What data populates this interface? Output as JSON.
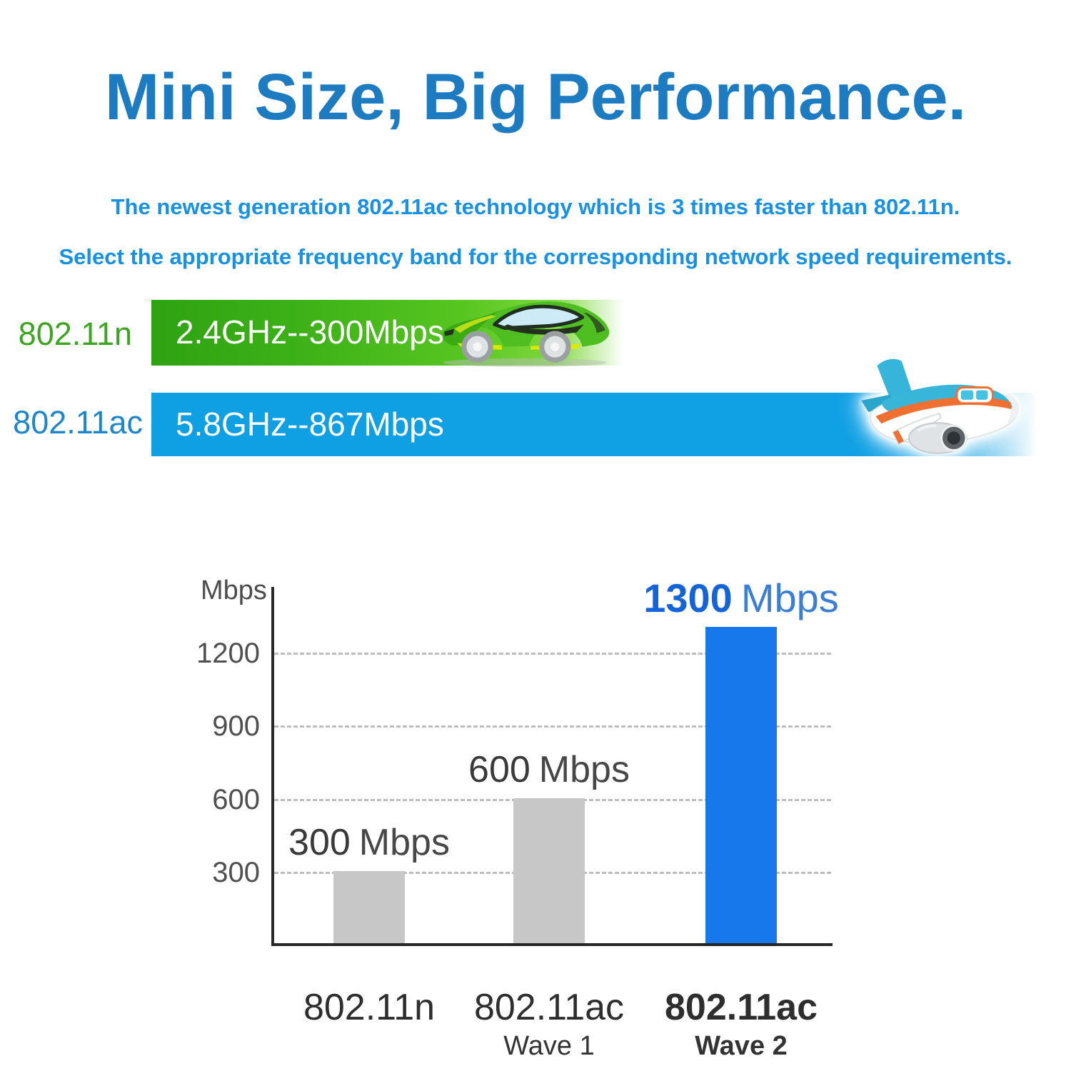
{
  "title": "Mini Size, Big Performance.",
  "subtitles": {
    "line1": "The newest generation 802.11ac technology which is 3 times faster than 802.11n.",
    "line2": "Select the appropriate frequency band for the corresponding network speed requirements."
  },
  "bands": [
    {
      "label": "802.11n",
      "text": "2.4GHz--300Mbps",
      "color": "#3fb318",
      "icon": "sports-car"
    },
    {
      "label": "802.11ac",
      "text": "5.8GHz--867Mbps",
      "color": "#10a0e4",
      "icon": "airplane"
    }
  ],
  "chart": {
    "ylabel": "Mbps",
    "yticks": [
      "1200",
      "900",
      "600",
      "300"
    ],
    "bars": [
      {
        "value_num": "300",
        "value_unit": "Mbps",
        "x_label": "802.11n",
        "sub_label": ""
      },
      {
        "value_num": "600",
        "value_unit": "Mbps",
        "x_label": "802.11ac",
        "sub_label": "Wave 1"
      },
      {
        "value_num": "1300",
        "value_unit": "Mbps",
        "x_label": "802.11ac",
        "sub_label": "Wave 2"
      }
    ]
  },
  "chart_data": {
    "type": "bar",
    "title": "",
    "categories": [
      "802.11n",
      "802.11ac Wave 1",
      "802.11ac Wave 2"
    ],
    "values": [
      300,
      600,
      1300
    ],
    "value_labels": [
      "300 Mbps",
      "600 Mbps",
      "1300 Mbps"
    ],
    "xlabel": "",
    "ylabel": "Mbps",
    "ytick_values": [
      300,
      600,
      900,
      1200
    ],
    "ylim": [
      0,
      1450
    ],
    "grid": "horizontal-dashed",
    "legend": "none",
    "bar_colors": [
      "#c7c7c7",
      "#c7c7c7",
      "#1778ec"
    ]
  },
  "colors": {
    "title_blue": "#1d7cc1",
    "subtitle_blue": "#1691e4",
    "band_green_label": "#3aa61e",
    "band_blue_label": "#1d87cb",
    "axis_dark": "#2b2b2b",
    "gridline_gray": "#bdbdbd",
    "value_blue_bold": "#1464d8"
  }
}
